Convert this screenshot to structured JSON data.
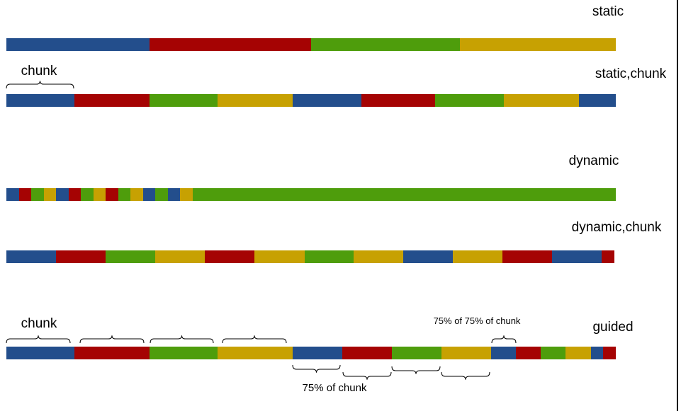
{
  "palette": {
    "blue": "#234e8c",
    "red": "#a50303",
    "green": "#4e9d0c",
    "yellow": "#c7a102"
  },
  "rows": [
    {
      "id": "static",
      "label": "static",
      "segments": [
        {
          "color": "blue",
          "span": 202
        },
        {
          "color": "red",
          "span": 228
        },
        {
          "color": "green",
          "span": 210
        },
        {
          "color": "yellow",
          "span": 220
        }
      ]
    },
    {
      "id": "static-chunk",
      "label": "static,chunk",
      "segments": [
        {
          "color": "blue",
          "span": 96
        },
        {
          "color": "red",
          "span": 106
        },
        {
          "color": "green",
          "span": 96
        },
        {
          "color": "yellow",
          "span": 106
        },
        {
          "color": "blue",
          "span": 97
        },
        {
          "color": "red",
          "span": 104
        },
        {
          "color": "green",
          "span": 97
        },
        {
          "color": "yellow",
          "span": 106
        },
        {
          "color": "blue",
          "span": 52
        }
      ]
    },
    {
      "id": "dynamic",
      "label": "dynamic",
      "segments": [
        {
          "color": "blue",
          "span": 18
        },
        {
          "color": "red",
          "span": 17
        },
        {
          "color": "green",
          "span": 18
        },
        {
          "color": "yellow",
          "span": 17
        },
        {
          "color": "blue",
          "span": 18
        },
        {
          "color": "red",
          "span": 17
        },
        {
          "color": "green",
          "span": 18
        },
        {
          "color": "yellow",
          "span": 17
        },
        {
          "color": "red",
          "span": 18
        },
        {
          "color": "green",
          "span": 17
        },
        {
          "color": "yellow",
          "span": 18
        },
        {
          "color": "blue",
          "span": 17
        },
        {
          "color": "green",
          "span": 18
        },
        {
          "color": "blue",
          "span": 17
        },
        {
          "color": "yellow",
          "span": 18
        },
        {
          "color": "green",
          "span": 597
        }
      ]
    },
    {
      "id": "dynamic-chunk",
      "label": "dynamic,chunk",
      "segments": [
        {
          "color": "blue",
          "span": 70
        },
        {
          "color": "red",
          "span": 70
        },
        {
          "color": "green",
          "span": 70
        },
        {
          "color": "yellow",
          "span": 70
        },
        {
          "color": "red",
          "span": 70
        },
        {
          "color": "yellow",
          "span": 71
        },
        {
          "color": "green",
          "span": 69
        },
        {
          "color": "yellow",
          "span": 70
        },
        {
          "color": "blue",
          "span": 70
        },
        {
          "color": "yellow",
          "span": 70
        },
        {
          "color": "red",
          "span": 70
        },
        {
          "color": "blue",
          "span": 70
        },
        {
          "color": "red",
          "span": 18
        }
      ]
    },
    {
      "id": "guided",
      "label": "guided",
      "segments": [
        {
          "color": "blue",
          "span": 96
        },
        {
          "color": "red",
          "span": 106
        },
        {
          "color": "green",
          "span": 96
        },
        {
          "color": "yellow",
          "span": 106
        },
        {
          "color": "blue",
          "span": 70
        },
        {
          "color": "red",
          "span": 70
        },
        {
          "color": "green",
          "span": 70
        },
        {
          "color": "yellow",
          "span": 70
        },
        {
          "color": "blue",
          "span": 35
        },
        {
          "color": "red",
          "span": 35
        },
        {
          "color": "green",
          "span": 35
        },
        {
          "color": "yellow",
          "span": 36
        },
        {
          "color": "blue",
          "span": 17
        },
        {
          "color": "red",
          "span": 18
        }
      ]
    }
  ],
  "annotations": {
    "chunk_top": "chunk",
    "chunk_guided": "chunk",
    "seventy_five": "75% of chunk",
    "seventy_five_of_seventy_five": "75% of 75% of chunk"
  }
}
